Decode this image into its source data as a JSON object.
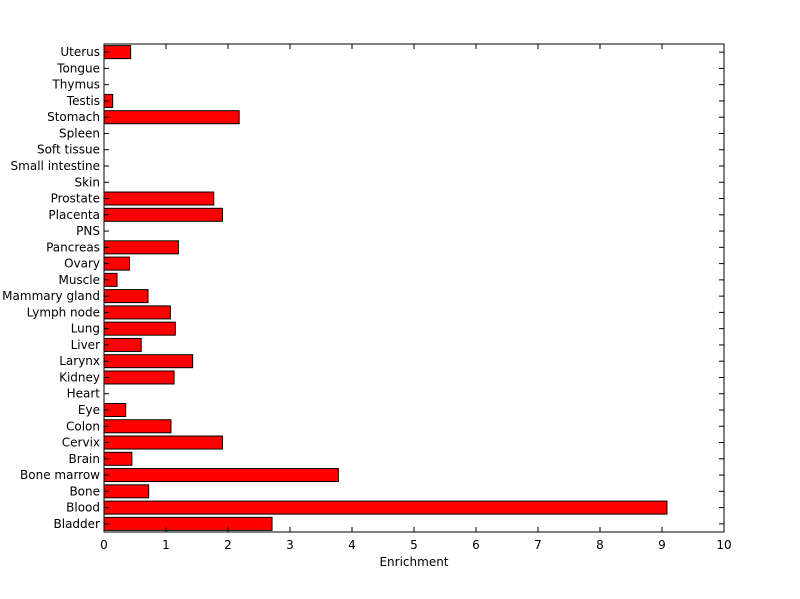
{
  "chart_data": {
    "type": "bar",
    "orientation": "horizontal",
    "title": "",
    "xlabel": "Enrichment",
    "ylabel": "",
    "xlim": [
      0,
      10
    ],
    "xticks": [
      0,
      1,
      2,
      3,
      4,
      5,
      6,
      7,
      8,
      9,
      10
    ],
    "grid": false,
    "bar_color": "#ff0000",
    "bar_edge_color": "#000000",
    "categories": [
      "Bladder",
      "Blood",
      "Bone",
      "Bone marrow",
      "Brain",
      "Cervix",
      "Colon",
      "Eye",
      "Heart",
      "Kidney",
      "Larynx",
      "Liver",
      "Lung",
      "Lymph node",
      "Mammary gland",
      "Muscle",
      "Ovary",
      "Pancreas",
      "PNS",
      "Placenta",
      "Prostate",
      "Skin",
      "Small intestine",
      "Soft tissue",
      "Spleen",
      "Stomach",
      "Testis",
      "Thymus",
      "Tongue",
      "Uterus"
    ],
    "values": [
      2.71,
      9.08,
      0.72,
      3.78,
      0.45,
      1.91,
      1.08,
      0.35,
      0,
      1.13,
      1.43,
      0.6,
      1.15,
      1.07,
      0.71,
      0.21,
      0.41,
      1.2,
      0,
      1.91,
      1.77,
      0,
      0,
      0,
      0,
      2.18,
      0.14,
      0,
      0,
      0.43
    ]
  }
}
